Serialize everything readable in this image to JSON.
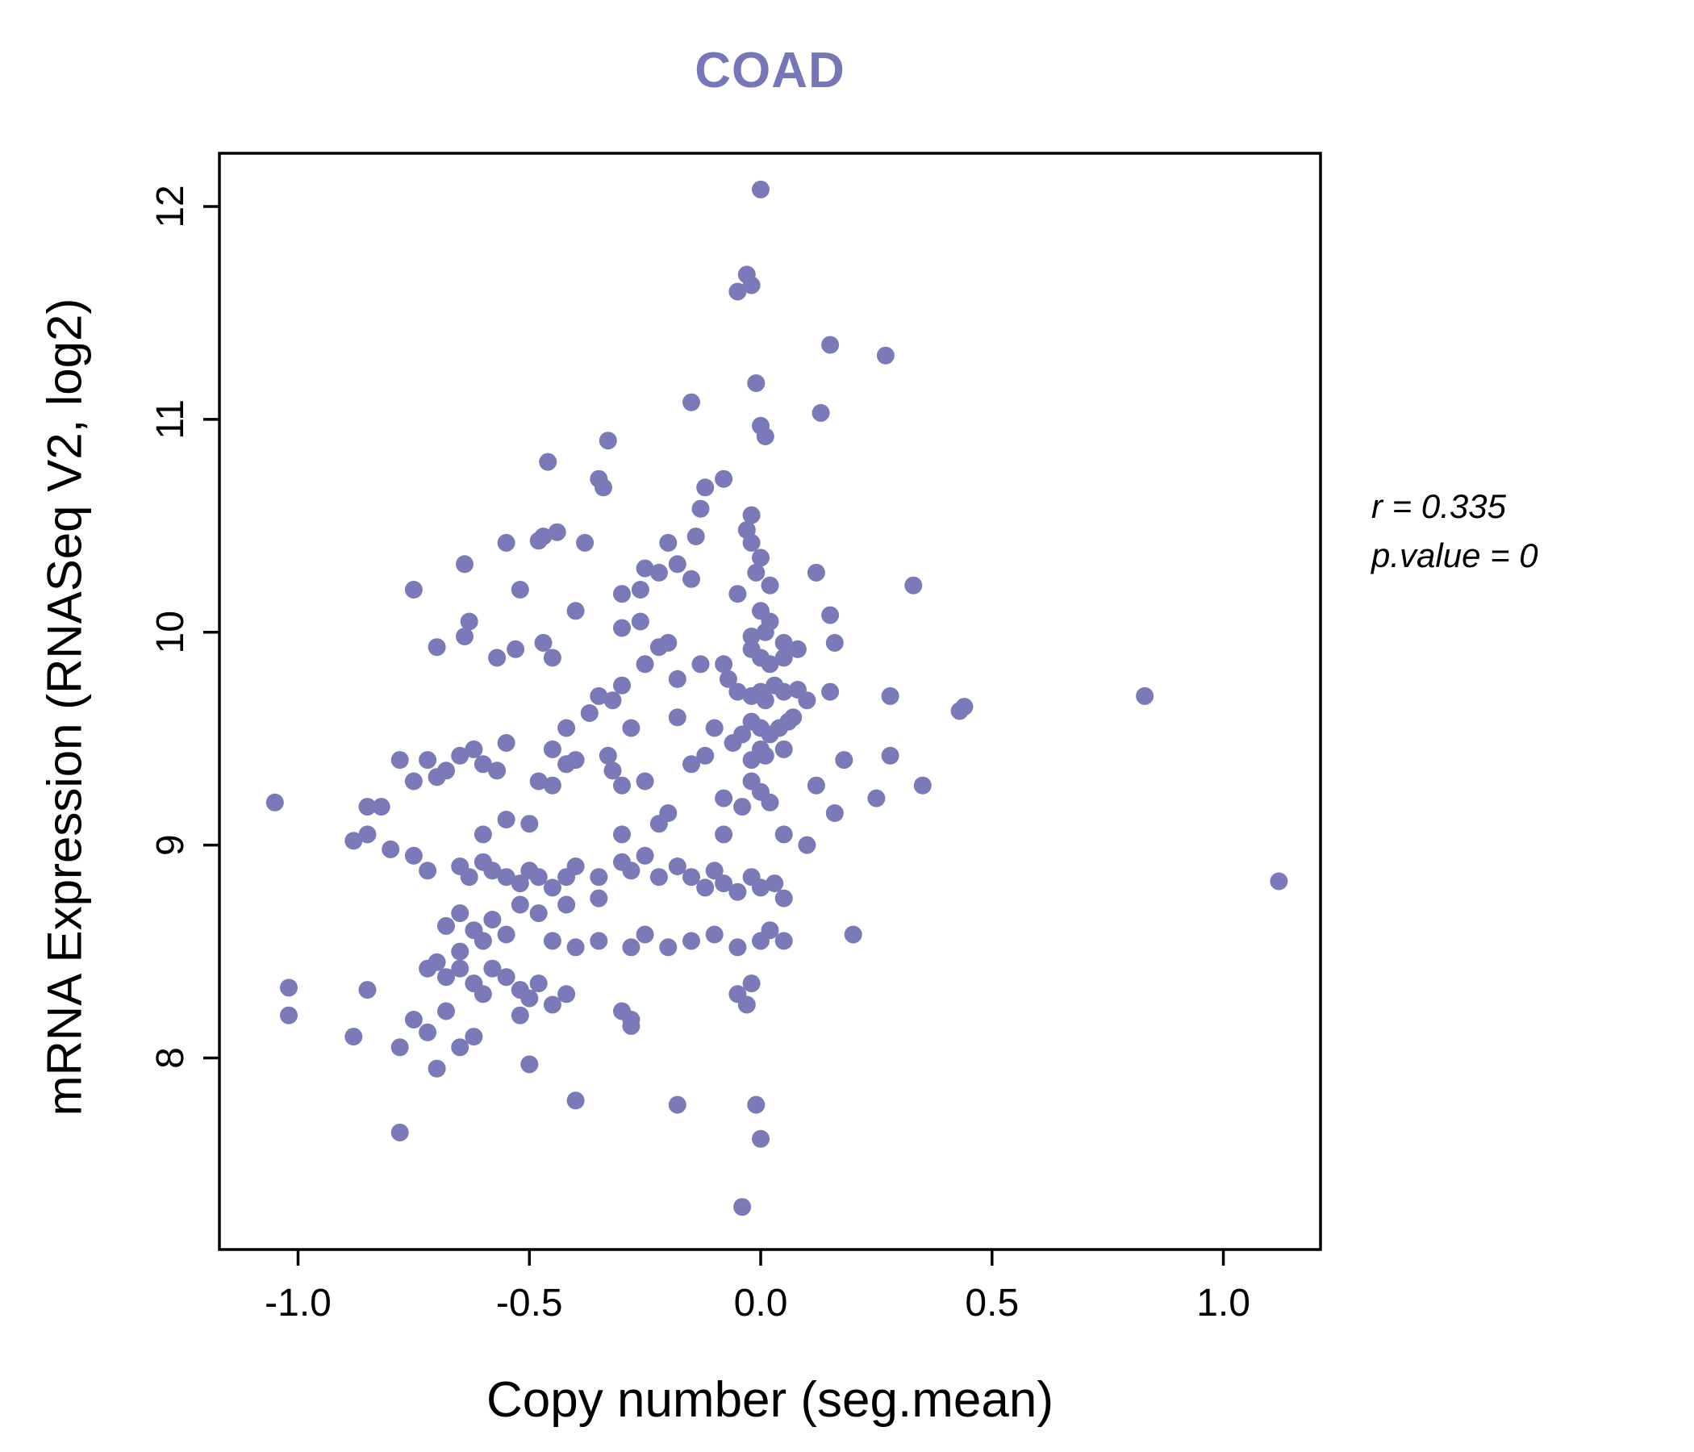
{
  "chart_data": {
    "type": "scatter",
    "title": "COAD",
    "xlabel": "Copy number (seg.mean)",
    "ylabel": "mRNA Expression (RNASeq V2, log2)",
    "annotations": [
      "r = 0.335",
      "p.value = 0"
    ],
    "xlim": [
      -1.17,
      1.21
    ],
    "ylim": [
      7.1,
      12.25
    ],
    "x_ticks": [
      {
        "value": -1.0,
        "label": "-1.0"
      },
      {
        "value": -0.5,
        "label": "-0.5"
      },
      {
        "value": 0.0,
        "label": "0.0"
      },
      {
        "value": 0.5,
        "label": "0.5"
      },
      {
        "value": 1.0,
        "label": "1.0"
      }
    ],
    "y_ticks": [
      {
        "value": 8,
        "label": "8"
      },
      {
        "value": 9,
        "label": "9"
      },
      {
        "value": 10,
        "label": "10"
      },
      {
        "value": 11,
        "label": "11"
      },
      {
        "value": 12,
        "label": "12"
      }
    ],
    "grid": false,
    "legend": "none",
    "point_color": "#7a7ab8",
    "title_color": "#7577b9",
    "axis_color": "#000000",
    "points": [
      [
        0.0,
        12.08
      ],
      [
        -0.03,
        11.68
      ],
      [
        -0.05,
        11.6
      ],
      [
        -0.02,
        11.63
      ],
      [
        0.15,
        11.35
      ],
      [
        0.27,
        11.3
      ],
      [
        -0.15,
        11.08
      ],
      [
        -0.01,
        11.17
      ],
      [
        0.13,
        11.03
      ],
      [
        0.0,
        10.97
      ],
      [
        0.01,
        10.92
      ],
      [
        -0.33,
        10.9
      ],
      [
        -0.46,
        10.8
      ],
      [
        -0.35,
        10.72
      ],
      [
        -0.34,
        10.68
      ],
      [
        -0.12,
        10.68
      ],
      [
        -0.08,
        10.72
      ],
      [
        -0.13,
        10.58
      ],
      [
        -0.02,
        10.55
      ],
      [
        -0.03,
        10.48
      ],
      [
        0.33,
        10.22
      ],
      [
        -0.75,
        10.2
      ],
      [
        -0.64,
        10.32
      ],
      [
        -0.63,
        10.05
      ],
      [
        -0.47,
        10.45
      ],
      [
        -0.44,
        10.47
      ],
      [
        -0.38,
        10.42
      ],
      [
        -0.25,
        10.3
      ],
      [
        -0.22,
        10.28
      ],
      [
        -0.18,
        10.32
      ],
      [
        -0.14,
        10.45
      ],
      [
        -0.02,
        10.42
      ],
      [
        0.0,
        10.35
      ],
      [
        -0.01,
        10.28
      ],
      [
        0.02,
        10.22
      ],
      [
        -0.05,
        10.18
      ],
      [
        0.12,
        10.28
      ],
      [
        -0.26,
        10.2
      ],
      [
        -0.52,
        10.2
      ],
      [
        -0.3,
        10.18
      ],
      [
        -0.26,
        10.05
      ],
      [
        -0.3,
        10.02
      ],
      [
        0.0,
        10.1
      ],
      [
        0.02,
        10.05
      ],
      [
        0.01,
        10.0
      ],
      [
        0.15,
        10.08
      ],
      [
        0.16,
        9.95
      ],
      [
        -0.02,
        9.98
      ],
      [
        -0.7,
        9.93
      ],
      [
        -0.64,
        9.98
      ],
      [
        -0.53,
        9.92
      ],
      [
        -0.57,
        9.88
      ],
      [
        -0.47,
        9.95
      ],
      [
        -0.45,
        9.88
      ],
      [
        -0.25,
        9.85
      ],
      [
        -0.22,
        9.93
      ],
      [
        -0.2,
        9.95
      ],
      [
        -0.18,
        9.78
      ],
      [
        -0.13,
        9.85
      ],
      [
        -0.08,
        9.85
      ],
      [
        -0.07,
        9.78
      ],
      [
        -0.05,
        9.72
      ],
      [
        -0.02,
        9.7
      ],
      [
        0.0,
        9.72
      ],
      [
        0.01,
        9.68
      ],
      [
        0.03,
        9.75
      ],
      [
        0.05,
        9.72
      ],
      [
        0.07,
        9.6
      ],
      [
        0.08,
        9.73
      ],
      [
        0.1,
        9.68
      ],
      [
        0.15,
        9.72
      ],
      [
        0.28,
        9.7
      ],
      [
        0.83,
        9.7
      ],
      [
        0.43,
        9.63
      ],
      [
        0.44,
        9.65
      ],
      [
        -0.35,
        9.7
      ],
      [
        -0.37,
        9.62
      ],
      [
        -0.42,
        9.55
      ],
      [
        -0.28,
        9.55
      ],
      [
        -0.18,
        9.6
      ],
      [
        -0.1,
        9.55
      ],
      [
        -0.02,
        9.58
      ],
      [
        0.0,
        9.55
      ],
      [
        0.02,
        9.52
      ],
      [
        0.04,
        9.55
      ],
      [
        0.06,
        9.58
      ],
      [
        -0.04,
        9.52
      ],
      [
        -0.06,
        9.48
      ],
      [
        0.0,
        9.45
      ],
      [
        0.01,
        9.42
      ],
      [
        -0.02,
        9.4
      ],
      [
        0.05,
        9.45
      ],
      [
        -0.45,
        9.45
      ],
      [
        -0.55,
        9.48
      ],
      [
        -0.62,
        9.45
      ],
      [
        -0.65,
        9.42
      ],
      [
        -0.6,
        9.38
      ],
      [
        -0.57,
        9.35
      ],
      [
        -0.68,
        9.35
      ],
      [
        -0.72,
        9.4
      ],
      [
        -0.78,
        9.4
      ],
      [
        -0.82,
        9.18
      ],
      [
        -0.85,
        9.18
      ],
      [
        -0.75,
        9.3
      ],
      [
        -0.7,
        9.32
      ],
      [
        -0.48,
        9.3
      ],
      [
        -0.45,
        9.28
      ],
      [
        -0.42,
        9.38
      ],
      [
        -0.4,
        9.4
      ],
      [
        -0.33,
        9.42
      ],
      [
        -0.32,
        9.35
      ],
      [
        -0.3,
        9.28
      ],
      [
        -0.25,
        9.3
      ],
      [
        -0.15,
        9.38
      ],
      [
        -0.12,
        9.42
      ],
      [
        0.18,
        9.4
      ],
      [
        0.28,
        9.42
      ],
      [
        0.35,
        9.28
      ],
      [
        0.25,
        9.22
      ],
      [
        0.16,
        9.15
      ],
      [
        0.12,
        9.28
      ],
      [
        -0.02,
        9.3
      ],
      [
        0.0,
        9.25
      ],
      [
        0.02,
        9.2
      ],
      [
        -0.04,
        9.18
      ],
      [
        -0.08,
        9.22
      ],
      [
        -0.2,
        9.15
      ],
      [
        -0.22,
        9.1
      ],
      [
        -0.3,
        9.05
      ],
      [
        -0.5,
        9.1
      ],
      [
        -0.55,
        9.12
      ],
      [
        -0.6,
        9.05
      ],
      [
        -0.85,
        9.05
      ],
      [
        -0.88,
        9.02
      ],
      [
        -1.05,
        9.2
      ],
      [
        -0.8,
        8.98
      ],
      [
        -0.75,
        8.95
      ],
      [
        -0.72,
        8.88
      ],
      [
        -0.65,
        8.9
      ],
      [
        -0.63,
        8.85
      ],
      [
        -0.6,
        8.92
      ],
      [
        -0.58,
        8.88
      ],
      [
        -0.55,
        8.85
      ],
      [
        -0.52,
        8.82
      ],
      [
        -0.5,
        8.88
      ],
      [
        -0.48,
        8.85
      ],
      [
        -0.45,
        8.8
      ],
      [
        -0.42,
        8.85
      ],
      [
        -0.4,
        8.9
      ],
      [
        -0.35,
        8.85
      ],
      [
        -0.3,
        8.92
      ],
      [
        -0.28,
        8.88
      ],
      [
        -0.25,
        8.95
      ],
      [
        -0.22,
        8.85
      ],
      [
        -0.18,
        8.9
      ],
      [
        -0.15,
        8.85
      ],
      [
        -0.12,
        8.8
      ],
      [
        -0.1,
        8.88
      ],
      [
        -0.08,
        8.82
      ],
      [
        -0.05,
        8.78
      ],
      [
        -0.02,
        8.85
      ],
      [
        0.0,
        8.8
      ],
      [
        0.03,
        8.82
      ],
      [
        0.05,
        8.75
      ],
      [
        1.12,
        8.83
      ],
      [
        -0.35,
        8.75
      ],
      [
        -0.42,
        8.72
      ],
      [
        -0.48,
        8.68
      ],
      [
        -0.52,
        8.72
      ],
      [
        -0.58,
        8.65
      ],
      [
        -0.62,
        8.6
      ],
      [
        -0.65,
        8.68
      ],
      [
        -0.68,
        8.62
      ],
      [
        -0.6,
        8.55
      ],
      [
        -0.55,
        8.58
      ],
      [
        -0.45,
        8.55
      ],
      [
        -0.4,
        8.52
      ],
      [
        -0.35,
        8.55
      ],
      [
        -0.28,
        8.52
      ],
      [
        -0.25,
        8.58
      ],
      [
        -0.2,
        8.52
      ],
      [
        -0.15,
        8.55
      ],
      [
        -0.1,
        8.58
      ],
      [
        -0.05,
        8.52
      ],
      [
        0.0,
        8.55
      ],
      [
        0.02,
        8.6
      ],
      [
        0.05,
        8.55
      ],
      [
        0.2,
        8.58
      ],
      [
        -0.65,
        8.5
      ],
      [
        -0.7,
        8.45
      ],
      [
        -0.72,
        8.42
      ],
      [
        -0.68,
        8.38
      ],
      [
        -0.65,
        8.42
      ],
      [
        -0.62,
        8.35
      ],
      [
        -0.6,
        8.3
      ],
      [
        -0.58,
        8.42
      ],
      [
        -0.55,
        8.38
      ],
      [
        -0.52,
        8.32
      ],
      [
        -0.5,
        8.28
      ],
      [
        -0.48,
        8.35
      ],
      [
        -0.85,
        8.32
      ],
      [
        -0.88,
        8.1
      ],
      [
        -1.02,
        8.33
      ],
      [
        -1.02,
        8.2
      ],
      [
        -0.78,
        8.05
      ],
      [
        -0.75,
        8.18
      ],
      [
        -0.72,
        8.12
      ],
      [
        -0.68,
        8.22
      ],
      [
        -0.65,
        8.05
      ],
      [
        -0.62,
        8.1
      ],
      [
        -0.7,
        7.95
      ],
      [
        -0.45,
        8.25
      ],
      [
        -0.42,
        8.3
      ],
      [
        -0.52,
        8.2
      ],
      [
        -0.3,
        8.22
      ],
      [
        -0.28,
        8.18
      ],
      [
        -0.05,
        8.3
      ],
      [
        -0.02,
        8.35
      ],
      [
        -0.03,
        8.25
      ],
      [
        -0.28,
        8.15
      ],
      [
        -0.5,
        7.97
      ],
      [
        -0.4,
        7.8
      ],
      [
        -0.18,
        7.78
      ],
      [
        -0.01,
        7.78
      ],
      [
        0.0,
        7.62
      ],
      [
        -0.78,
        7.65
      ],
      [
        -0.04,
        7.3
      ],
      [
        0.1,
        9.0
      ],
      [
        0.05,
        9.05
      ],
      [
        -0.08,
        9.05
      ],
      [
        -0.4,
        10.1
      ],
      [
        -0.55,
        10.42
      ],
      [
        -0.48,
        10.43
      ],
      [
        -0.2,
        10.42
      ],
      [
        -0.15,
        10.25
      ],
      [
        0.05,
        9.95
      ],
      [
        0.08,
        9.92
      ],
      [
        0.05,
        9.88
      ],
      [
        -0.02,
        9.92
      ],
      [
        0.0,
        9.88
      ],
      [
        0.02,
        9.85
      ],
      [
        -0.3,
        9.75
      ],
      [
        -0.32,
        9.68
      ]
    ]
  }
}
